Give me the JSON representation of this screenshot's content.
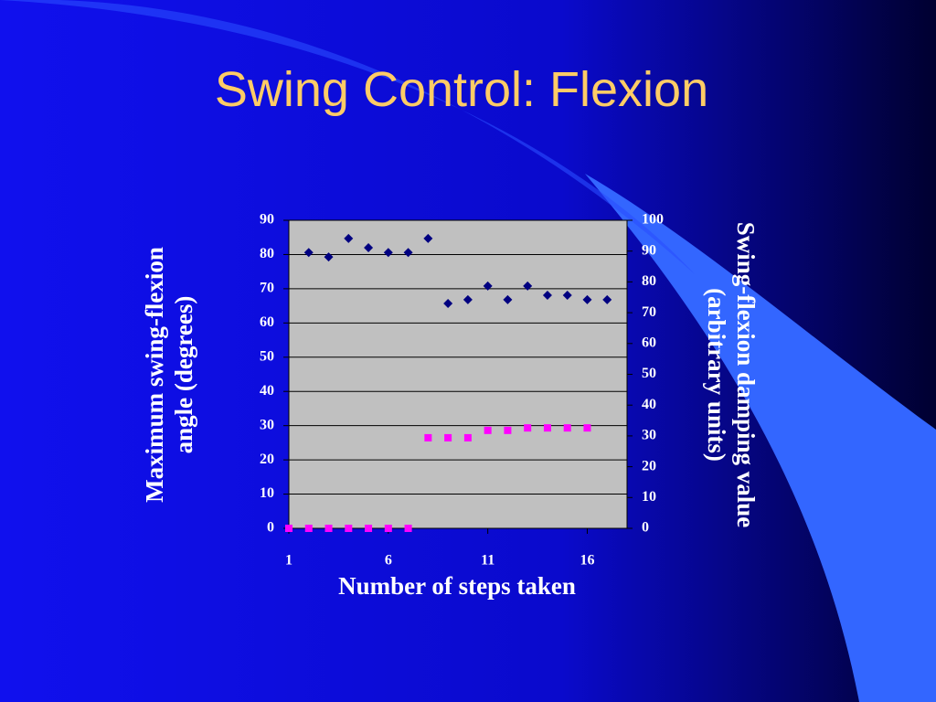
{
  "chart_data": {
    "type": "scatter",
    "title": "Swing Control: Flexion",
    "xlabel": "Number of steps taken",
    "ylabel": "Maximum swing-flexion angle (degrees)",
    "y2label": "Swing-flexion damping value (arbitrary units)",
    "xlim": [
      1,
      18
    ],
    "xticks": [
      1,
      6,
      11,
      16
    ],
    "ylim": [
      0,
      90
    ],
    "yticks": [
      0,
      10,
      20,
      30,
      40,
      50,
      60,
      70,
      80,
      90
    ],
    "y2lim": [
      0,
      100
    ],
    "y2ticks": [
      0,
      10,
      20,
      30,
      40,
      50,
      60,
      70,
      80,
      90,
      100
    ],
    "grid": true,
    "series": [
      {
        "color": "#000080",
        "marker": "diamond",
        "x": [
          2,
          3,
          4,
          5,
          6,
          7,
          8,
          9,
          10,
          11,
          12,
          13,
          14,
          15,
          16,
          17
        ],
        "values": [
          80.6,
          79.3,
          84.7,
          82,
          80.6,
          80.6,
          84.7,
          65.7,
          66.8,
          70.8,
          66.8,
          70.8,
          68.1,
          68.1,
          66.8,
          66.8
        ]
      },
      {
        "color": "#ff00ff",
        "marker": "square",
        "axis": "y2",
        "x": [
          1,
          2,
          3,
          4,
          5,
          6,
          7,
          8,
          9,
          10,
          11,
          12,
          13,
          14,
          15,
          16
        ],
        "values": [
          0,
          0,
          0,
          0,
          0,
          0,
          0,
          29.4,
          29.4,
          29.4,
          31.8,
          31.8,
          32.6,
          32.6,
          32.6,
          32.6
        ]
      }
    ]
  }
}
